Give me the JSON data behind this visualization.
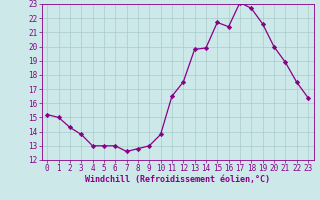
{
  "x": [
    0,
    1,
    2,
    3,
    4,
    5,
    6,
    7,
    8,
    9,
    10,
    11,
    12,
    13,
    14,
    15,
    16,
    17,
    18,
    19,
    20,
    21,
    22,
    23
  ],
  "y": [
    15.2,
    15.0,
    14.3,
    13.8,
    13.0,
    13.0,
    13.0,
    12.6,
    12.8,
    13.0,
    13.8,
    16.5,
    17.5,
    19.8,
    19.9,
    21.7,
    21.4,
    23.1,
    22.7,
    21.6,
    20.0,
    18.9,
    17.5,
    16.4
  ],
  "line_color": "#880088",
  "marker": "D",
  "marker_size": 2.2,
  "linewidth": 0.9,
  "xlabel": "Windchill (Refroidissement éolien,°C)",
  "xlabel_fontsize": 6.0,
  "xlim": [
    -0.5,
    23.5
  ],
  "ylim": [
    12,
    23
  ],
  "yticks": [
    12,
    13,
    14,
    15,
    16,
    17,
    18,
    19,
    20,
    21,
    22,
    23
  ],
  "xticks": [
    0,
    1,
    2,
    3,
    4,
    5,
    6,
    7,
    8,
    9,
    10,
    11,
    12,
    13,
    14,
    15,
    16,
    17,
    18,
    19,
    20,
    21,
    22,
    23
  ],
  "background_color": "#cce8e8",
  "grid_color": "#aacccc",
  "tick_fontsize": 5.5,
  "ylabel_fontsize": 5.5
}
